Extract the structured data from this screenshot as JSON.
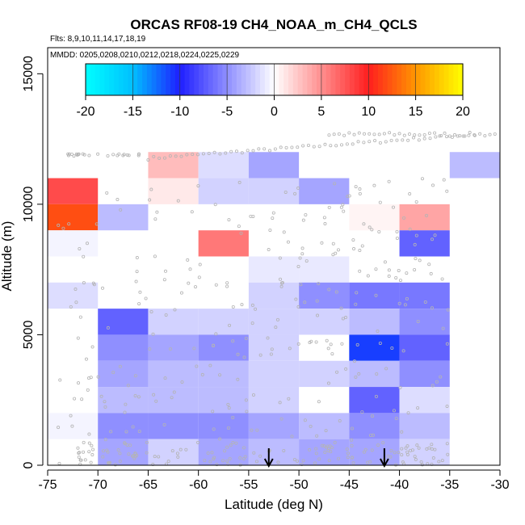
{
  "chart_data": {
    "type": "heatmap",
    "title": "ORCAS RF08-19 CH4_NOAA_m_CH4_QCLS",
    "flights_label": "Flts: 8,9,10,11,14,17,18,19",
    "dates_label": "MMDD: 0205,0208,0210,0212,0218,0224,0225,0229",
    "xlabel": "Latitude (deg N)",
    "ylabel": "Altitude (m)",
    "xlim": [
      -75,
      -30
    ],
    "ylim": [
      0,
      16000
    ],
    "x_ticks": [
      -75,
      -70,
      -65,
      -60,
      -55,
      -50,
      -45,
      -40,
      -35,
      -30
    ],
    "y_ticks": [
      0,
      5000,
      10000,
      15000
    ],
    "x_tick_labels": [
      "-75",
      "-70",
      "-65",
      "-60",
      "-55",
      "-50",
      "-45",
      "-40",
      "-35",
      "-30"
    ],
    "y_tick_labels": [
      "0",
      "5000",
      "10000",
      "15000"
    ],
    "colorbar": {
      "range": [
        -20,
        20
      ],
      "ticks": [
        -20,
        -15,
        -10,
        -5,
        0,
        5,
        10,
        15,
        20
      ],
      "tick_labels": [
        "-20",
        "-15",
        "-10",
        "-5",
        "0",
        "5",
        "10",
        "15",
        "20"
      ]
    },
    "bin_width_deg": 5,
    "bin_height_m": 1000,
    "cells": [
      {
        "lon": -75,
        "alt": 10000,
        "value": 8
      },
      {
        "lon": -75,
        "alt": 9000,
        "value": 12
      },
      {
        "lon": -75,
        "alt": 8000,
        "value": -0.5
      },
      {
        "lon": -75,
        "alt": 6000,
        "value": -1.5
      },
      {
        "lon": -75,
        "alt": 1000,
        "value": -0.5
      },
      {
        "lon": -70,
        "alt": 9000,
        "value": -3
      },
      {
        "lon": -70,
        "alt": 5000,
        "value": -7
      },
      {
        "lon": -70,
        "alt": 4000,
        "value": -5
      },
      {
        "lon": -70,
        "alt": 3000,
        "value": -4
      },
      {
        "lon": -70,
        "alt": 2000,
        "value": -3
      },
      {
        "lon": -70,
        "alt": 1000,
        "value": -5
      },
      {
        "lon": -70,
        "alt": 0,
        "value": -4
      },
      {
        "lon": -65,
        "alt": 11000,
        "value": 3
      },
      {
        "lon": -65,
        "alt": 10000,
        "value": 1
      },
      {
        "lon": -65,
        "alt": 5000,
        "value": -2
      },
      {
        "lon": -65,
        "alt": 4000,
        "value": -4
      },
      {
        "lon": -65,
        "alt": 3000,
        "value": -3
      },
      {
        "lon": -65,
        "alt": 2000,
        "value": -3
      },
      {
        "lon": -65,
        "alt": 1000,
        "value": -5
      },
      {
        "lon": -65,
        "alt": 0,
        "value": -2
      },
      {
        "lon": -60,
        "alt": 11000,
        "value": -1.5
      },
      {
        "lon": -60,
        "alt": 10000,
        "value": -2
      },
      {
        "lon": -60,
        "alt": 8000,
        "value": 6
      },
      {
        "lon": -60,
        "alt": 5000,
        "value": -2
      },
      {
        "lon": -60,
        "alt": 4000,
        "value": -5
      },
      {
        "lon": -60,
        "alt": 3000,
        "value": -3
      },
      {
        "lon": -60,
        "alt": 2000,
        "value": -3
      },
      {
        "lon": -60,
        "alt": 1000,
        "value": -5
      },
      {
        "lon": -60,
        "alt": 0,
        "value": -4
      },
      {
        "lon": -55,
        "alt": 11000,
        "value": -4
      },
      {
        "lon": -55,
        "alt": 10000,
        "value": -2
      },
      {
        "lon": -55,
        "alt": 7000,
        "value": -1
      },
      {
        "lon": -55,
        "alt": 6000,
        "value": -2
      },
      {
        "lon": -55,
        "alt": 5000,
        "value": -2
      },
      {
        "lon": -55,
        "alt": 4000,
        "value": -2
      },
      {
        "lon": -55,
        "alt": 3000,
        "value": -2
      },
      {
        "lon": -55,
        "alt": 2000,
        "value": -2
      },
      {
        "lon": -55,
        "alt": 1000,
        "value": -4
      },
      {
        "lon": -55,
        "alt": 0,
        "value": -3
      },
      {
        "lon": -50,
        "alt": 10000,
        "value": -4
      },
      {
        "lon": -50,
        "alt": 7000,
        "value": -1
      },
      {
        "lon": -50,
        "alt": 6000,
        "value": -5
      },
      {
        "lon": -50,
        "alt": 5000,
        "value": -2
      },
      {
        "lon": -50,
        "alt": 3000,
        "value": -2
      },
      {
        "lon": -50,
        "alt": 1000,
        "value": -3
      },
      {
        "lon": -50,
        "alt": 0,
        "value": -4
      },
      {
        "lon": -45,
        "alt": 9000,
        "value": 0.5
      },
      {
        "lon": -45,
        "alt": 6000,
        "value": -6
      },
      {
        "lon": -45,
        "alt": 5000,
        "value": -3
      },
      {
        "lon": -45,
        "alt": 4000,
        "value": -11
      },
      {
        "lon": -45,
        "alt": 3000,
        "value": -3
      },
      {
        "lon": -45,
        "alt": 2000,
        "value": -7
      },
      {
        "lon": -45,
        "alt": 1000,
        "value": -5
      },
      {
        "lon": -45,
        "alt": 0,
        "value": -4
      },
      {
        "lon": -40,
        "alt": 9000,
        "value": 4
      },
      {
        "lon": -40,
        "alt": 8000,
        "value": -7
      },
      {
        "lon": -40,
        "alt": 6000,
        "value": -6
      },
      {
        "lon": -40,
        "alt": 5000,
        "value": -5
      },
      {
        "lon": -40,
        "alt": 4000,
        "value": -7
      },
      {
        "lon": -40,
        "alt": 3000,
        "value": -5
      },
      {
        "lon": -40,
        "alt": 2000,
        "value": -1.5
      },
      {
        "lon": -40,
        "alt": 1000,
        "value": -3
      },
      {
        "lon": -40,
        "alt": 0,
        "value": -2
      },
      {
        "lon": -35,
        "alt": 11000,
        "value": -3
      }
    ],
    "arrows": [
      -53,
      -41.5
    ],
    "point_color": "#b4b4b4"
  }
}
